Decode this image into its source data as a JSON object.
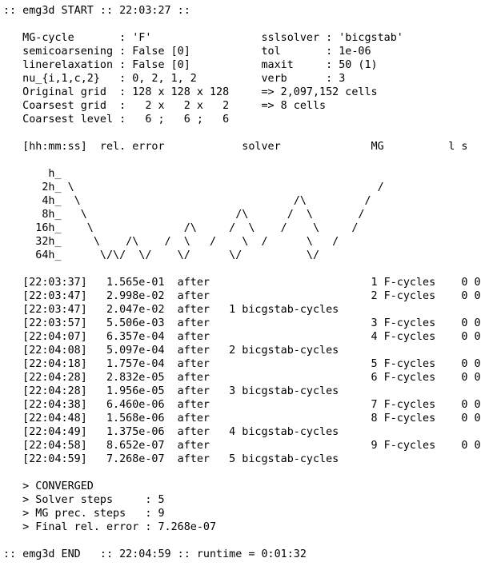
{
  "terminal": {
    "lines": [
      ":: emg3d START :: 22:03:27 ::",
      "",
      "   MG-cycle       : 'F'                 sslsolver : 'bicgstab'",
      "   semicoarsening : False [0]           tol       : 1e-06",
      "   linerelaxation : False [0]           maxit     : 50 (1)",
      "   nu_{i,1,c,2}   : 0, 2, 1, 2          verb      : 3",
      "   Original grid  : 128 x 128 x 128     => 2,097,152 cells",
      "   Coarsest grid  :   2 x   2 x   2     => 8 cells",
      "   Coarsest level :   6 ;   6 ;   6",
      "",
      "   [hh:mm:ss]  rel. error            solver              MG          l s",
      "",
      "       h_",
      "      2h_ \\                                               /",
      "      4h_  \\                                 /\\         /",
      "      8h_   \\                       /\\      /  \\       /",
      "     16h_    \\              /\\     /  \\    /    \\     /",
      "     32h_     \\    /\\    /  \\   /    \\  /      \\   /",
      "     64h_      \\/\\/  \\/    \\/      \\/          \\/",
      "",
      "   [22:03:37]   1.565e-01  after                         1 F-cycles    0 0",
      "   [22:03:47]   2.998e-02  after                         2 F-cycles    0 0",
      "   [22:03:47]   2.047e-02  after   1 bicgstab-cycles",
      "   [22:03:57]   5.506e-03  after                         3 F-cycles    0 0",
      "   [22:04:07]   6.357e-04  after                         4 F-cycles    0 0",
      "   [22:04:08]   5.097e-04  after   2 bicgstab-cycles",
      "   [22:04:18]   1.757e-04  after                         5 F-cycles    0 0",
      "   [22:04:28]   2.832e-05  after                         6 F-cycles    0 0",
      "   [22:04:28]   1.956e-05  after   3 bicgstab-cycles",
      "   [22:04:38]   6.460e-06  after                         7 F-cycles    0 0",
      "   [22:04:48]   1.568e-06  after                         8 F-cycles    0 0",
      "   [22:04:49]   1.375e-06  after   4 bicgstab-cycles",
      "   [22:04:58]   8.652e-07  after                         9 F-cycles    0 0",
      "   [22:04:59]   7.268e-07  after   5 bicgstab-cycles",
      "",
      "   > CONVERGED",
      "   > Solver steps     : 5",
      "   > MG prec. steps   : 9",
      "   > Final rel. error : 7.268e-07",
      "",
      ":: emg3d END   :: 22:04:59 :: runtime = 0:01:32"
    ]
  }
}
